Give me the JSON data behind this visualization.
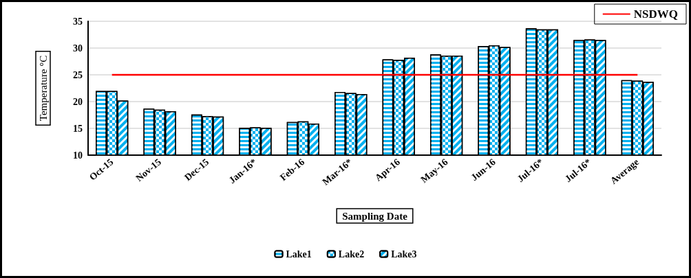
{
  "chart_data": {
    "type": "bar",
    "xlabel": "Sampling Date",
    "ylabel": "Temperature °C",
    "categories": [
      "Oct-15",
      "Nov-15",
      "Dec-15",
      "Jan-16*",
      "Feb-16",
      "Mar-16*",
      "Apr-16",
      "May-16",
      "Jun-16",
      "Jul-16*",
      "Jul-16*",
      "Average"
    ],
    "series": [
      {
        "name": "Lake1",
        "color": "#00b0f0",
        "values": [
          22.0,
          18.7,
          17.6,
          15.1,
          16.2,
          21.8,
          27.9,
          28.8,
          30.4,
          33.7,
          31.5,
          24.0
        ]
      },
      {
        "name": "Lake2",
        "color": "#00b0f0",
        "values": [
          22.0,
          18.5,
          17.3,
          15.2,
          16.3,
          21.6,
          27.8,
          28.6,
          30.5,
          33.5,
          31.6,
          23.9
        ]
      },
      {
        "name": "Lake3",
        "color": "#00b0f0",
        "values": [
          20.2,
          18.2,
          17.2,
          15.1,
          15.9,
          21.4,
          28.2,
          28.6,
          30.2,
          33.5,
          31.5,
          23.7
        ]
      },
      {
        "name": "NSDWQ",
        "type": "line",
        "color": "#ff0000",
        "values": [
          25,
          25,
          25,
          25,
          25,
          25,
          25,
          25,
          25,
          25,
          25,
          25
        ]
      }
    ],
    "ylim": [
      10,
      35
    ],
    "yticks": [
      10,
      15,
      20,
      25,
      30,
      35
    ],
    "grid": "y",
    "legend": "bottom",
    "marker": "none"
  }
}
